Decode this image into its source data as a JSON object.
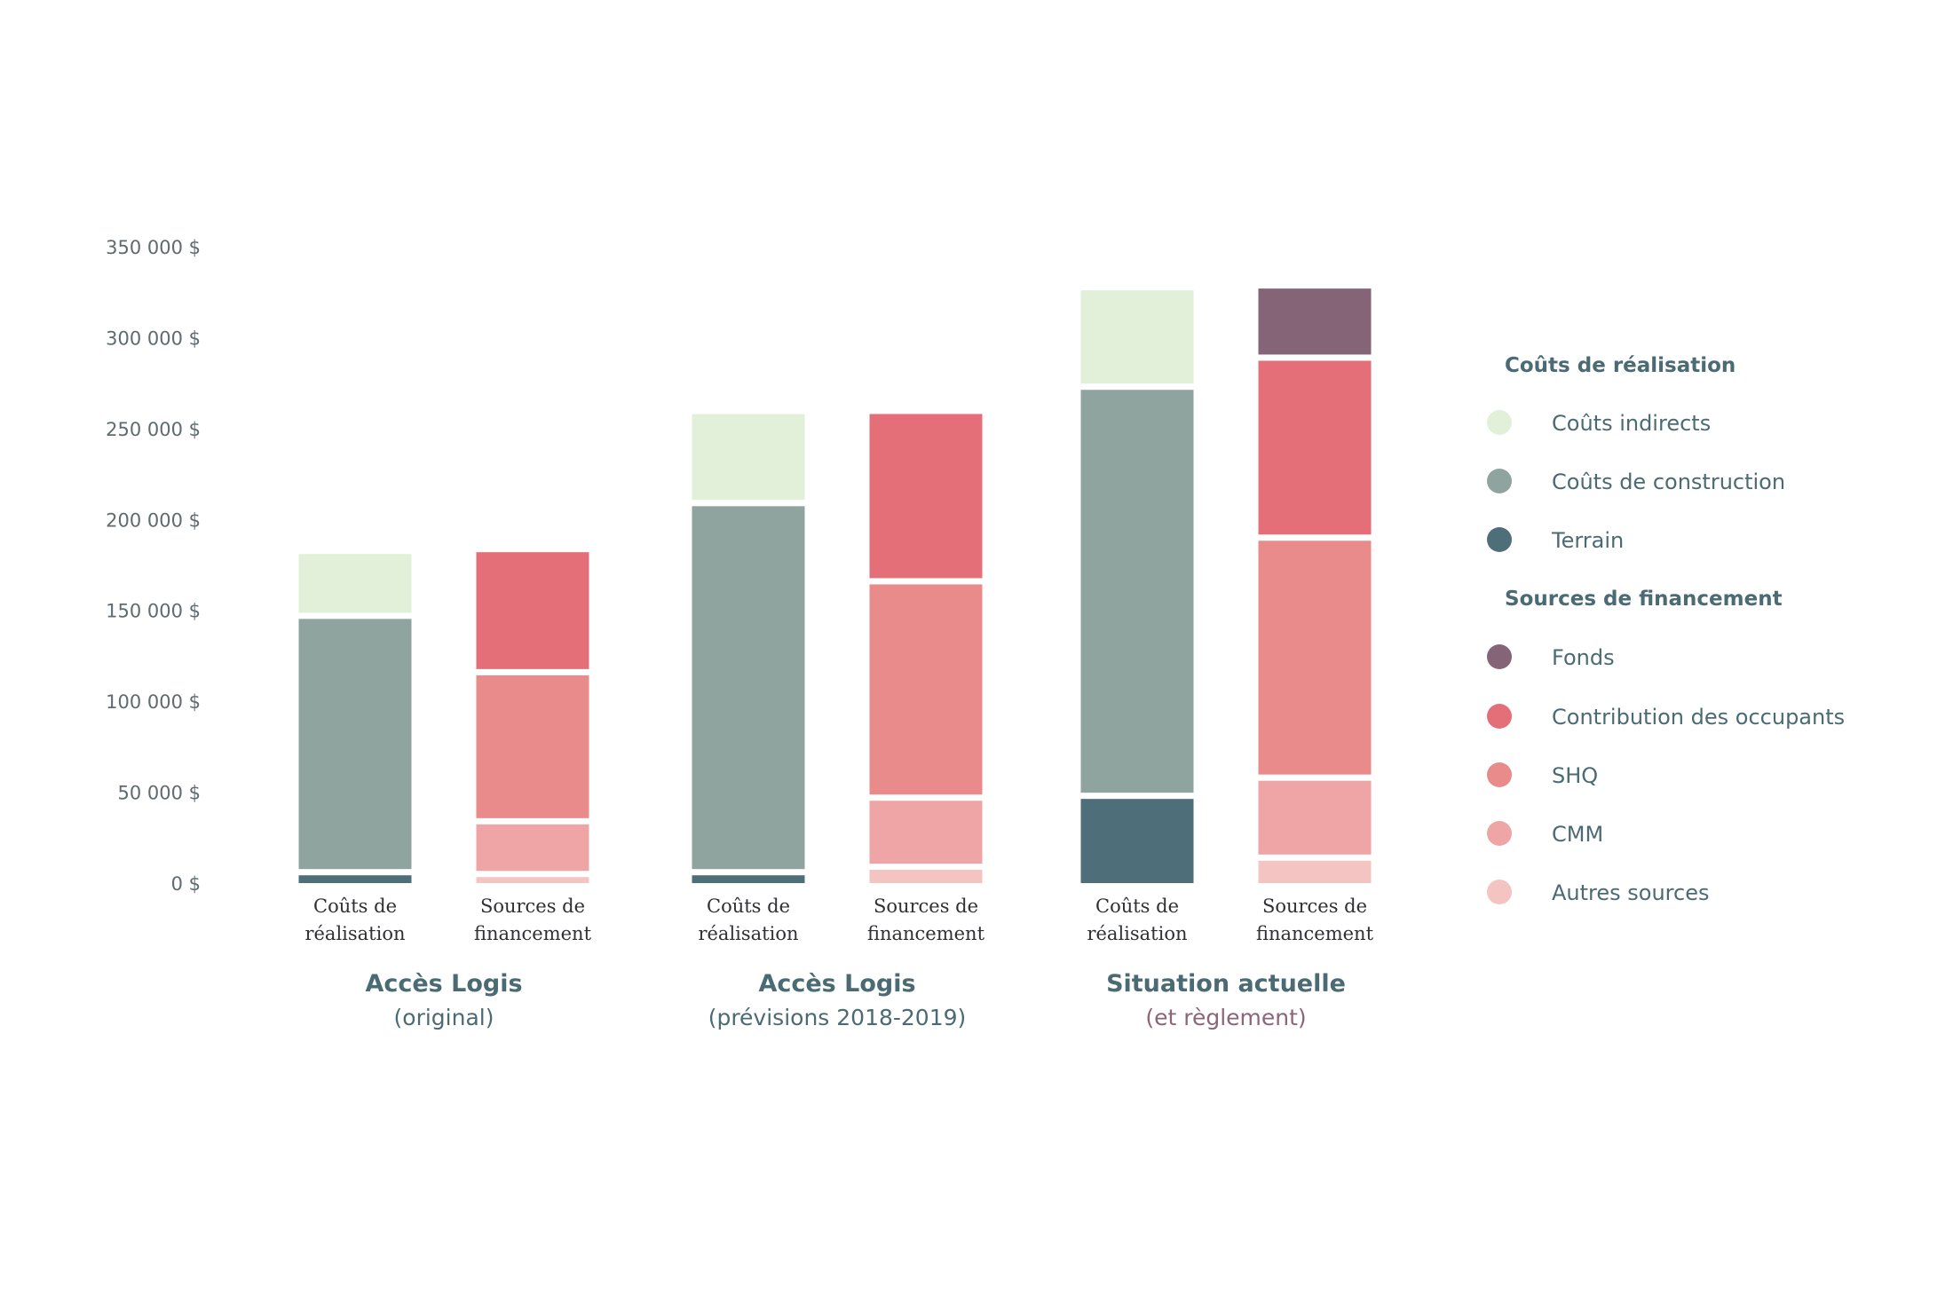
{
  "chart_data": {
    "type": "bar",
    "stacked": true,
    "currency_format": "space-thousands-dollar",
    "y_ticks": [
      "0 $",
      "50 000 $",
      "100 000 $",
      "150 000 $",
      "200 000 $",
      "250 000 $",
      "300 000 $",
      "350 000 $"
    ],
    "ylim": [
      0,
      350000
    ],
    "colors": {
      "couts_indirects": "#e2f0da",
      "couts_construction": "#8fa39f",
      "terrain": "#4e6f79",
      "fonds": "#866478",
      "contribution_occupants": "#e56f78",
      "shq": "#e98b8b",
      "cmm": "#efa5a5",
      "autres_sources": "#f4c4c2"
    },
    "groups": [
      {
        "title": "Accès Logis",
        "subtitle": "(original)",
        "bars": [
          {
            "label_line1": "Coûts de",
            "label_line2": "réalisation",
            "segments": [
              {
                "key": "terrain",
                "value": 6000
              },
              {
                "key": "couts_construction",
                "value": 141000
              },
              {
                "key": "couts_indirects",
                "value": 34000
              }
            ]
          },
          {
            "label_line1": "Sources de",
            "label_line2": "financement",
            "segments": [
              {
                "key": "autres_sources",
                "value": 5000
              },
              {
                "key": "cmm",
                "value": 29000
              },
              {
                "key": "shq",
                "value": 82000
              },
              {
                "key": "contribution_occupants",
                "value": 66000
              }
            ]
          }
        ]
      },
      {
        "title": "Accès Logis",
        "subtitle": "(prévisions 2018-2019)",
        "bars": [
          {
            "label_line1": "Coûts de",
            "label_line2": "réalisation",
            "segments": [
              {
                "key": "terrain",
                "value": 6000
              },
              {
                "key": "couts_construction",
                "value": 203000
              },
              {
                "key": "couts_indirects",
                "value": 49000
              }
            ]
          },
          {
            "label_line1": "Sources de",
            "label_line2": "financement",
            "segments": [
              {
                "key": "autres_sources",
                "value": 9000
              },
              {
                "key": "cmm",
                "value": 38000
              },
              {
                "key": "shq",
                "value": 119000
              },
              {
                "key": "contribution_occupants",
                "value": 92000
              }
            ]
          }
        ]
      },
      {
        "title": "Situation actuelle",
        "subtitle": "(et règlement)",
        "subtitle_alt_color": true,
        "bars": [
          {
            "label_line1": "Coûts de",
            "label_line2": "réalisation",
            "segments": [
              {
                "key": "terrain",
                "value": 48000
              },
              {
                "key": "couts_construction",
                "value": 225000
              },
              {
                "key": "couts_indirects",
                "value": 53000
              }
            ]
          },
          {
            "label_line1": "Sources de",
            "label_line2": "financement",
            "segments": [
              {
                "key": "autres_sources",
                "value": 14000
              },
              {
                "key": "cmm",
                "value": 44000
              },
              {
                "key": "shq",
                "value": 132000
              },
              {
                "key": "contribution_occupants",
                "value": 99000
              },
              {
                "key": "fonds",
                "value": 38000
              }
            ]
          }
        ]
      }
    ]
  },
  "legend": {
    "sections": [
      {
        "heading": "Coûts de réalisation",
        "items": [
          {
            "key": "couts_indirects",
            "label": "Coûts indirects"
          },
          {
            "key": "couts_construction",
            "label": "Coûts de construction"
          },
          {
            "key": "terrain",
            "label": "Terrain"
          }
        ]
      },
      {
        "heading": "Sources de financement",
        "items": [
          {
            "key": "fonds",
            "label": "Fonds"
          },
          {
            "key": "contribution_occupants",
            "label": "Contribution des occupants"
          },
          {
            "key": "shq",
            "label": "SHQ"
          },
          {
            "key": "cmm",
            "label": "CMM"
          },
          {
            "key": "autres_sources",
            "label": "Autres sources"
          }
        ]
      }
    ]
  }
}
